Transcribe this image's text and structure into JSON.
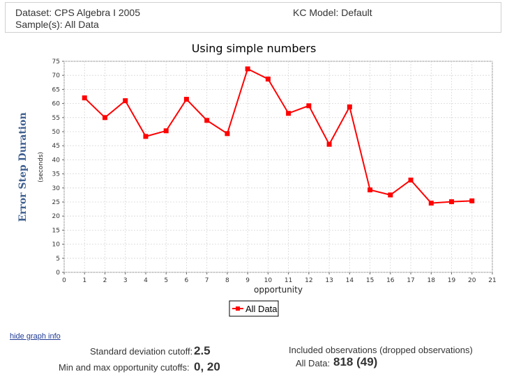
{
  "header": {
    "dataset": "Dataset: CPS Algebra I 2005",
    "kc_model": "KC Model: Default",
    "samples": "Sample(s): All Data"
  },
  "chart_data": {
    "type": "line",
    "title": "Using simple numbers",
    "xlabel": "opportunity",
    "ylabel": "Error Step Duration",
    "ylabel_units": "(seconds)",
    "xlim": [
      0,
      21
    ],
    "ylim": [
      0,
      75
    ],
    "x_ticks": [
      0,
      1,
      2,
      3,
      4,
      5,
      6,
      7,
      8,
      9,
      10,
      11,
      12,
      13,
      14,
      15,
      16,
      17,
      18,
      19,
      20,
      21
    ],
    "y_ticks": [
      0,
      5,
      10,
      15,
      20,
      25,
      30,
      35,
      40,
      45,
      50,
      55,
      60,
      65,
      70,
      75
    ],
    "grid": true,
    "legend_position": "bottom-center",
    "series": [
      {
        "name": "All Data",
        "color": "#ff0000",
        "x": [
          1,
          2,
          3,
          4,
          5,
          6,
          7,
          8,
          9,
          10,
          11,
          12,
          13,
          14,
          15,
          16,
          17,
          18,
          19,
          20
        ],
        "values": [
          62,
          55,
          61,
          48.3,
          50.3,
          61.5,
          54,
          49.3,
          72.3,
          68.7,
          56.5,
          59.2,
          45.5,
          58.8,
          29.3,
          27.5,
          32.8,
          24.6,
          25.1,
          25.4
        ]
      }
    ]
  },
  "footer": {
    "hide_link": "hide graph info",
    "sd_label": "Standard deviation cutoff:",
    "sd_value": "2.5",
    "opp_label": "Min and max opportunity cutoffs:",
    "opp_value": "0, 20",
    "obs_heading": "Included observations (dropped observations)",
    "obs_label": "All Data:",
    "obs_value": "818 (49)"
  }
}
